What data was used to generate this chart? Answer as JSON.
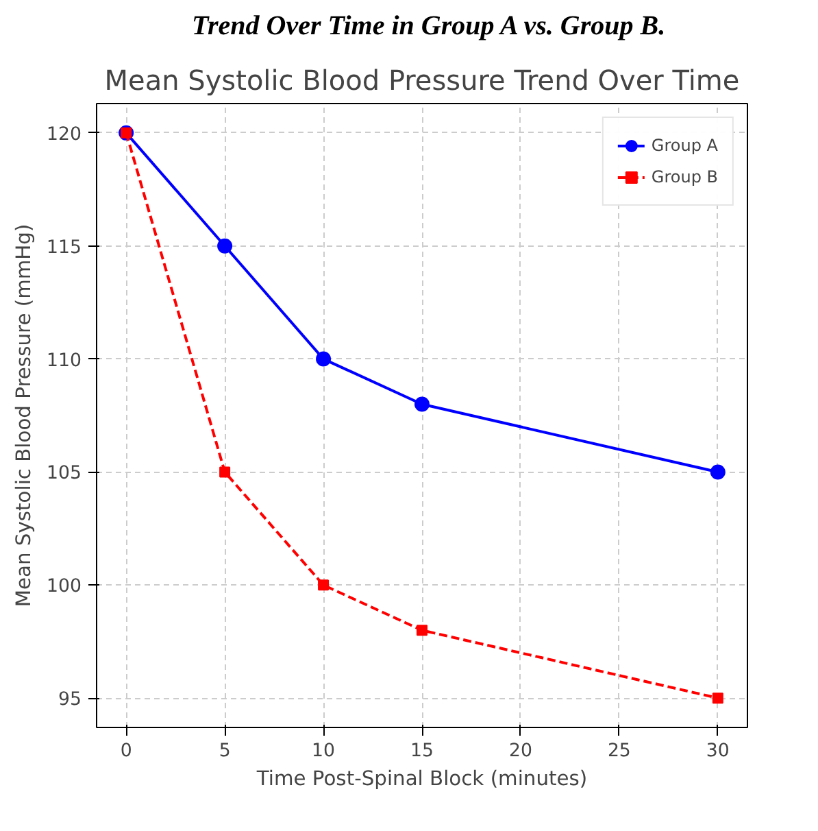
{
  "chart_data": {
    "type": "line",
    "title": "Mean Systolic Blood Pressure Trend Over Time",
    "xlabel": "Time Post-Spinal Block (minutes)",
    "ylabel": "Mean Systolic Blood Pressure (mmHg)",
    "annotations": [
      "Trend Over Time in Group A vs. Group B."
    ],
    "x": [
      0,
      5,
      10,
      15,
      30
    ],
    "series": [
      {
        "name": "Group A",
        "color": "#0000ff",
        "values": [
          120,
          115,
          110,
          108,
          105
        ],
        "marker": "circle",
        "line_style": "solid"
      },
      {
        "name": "Group B",
        "color": "#ff0000",
        "values": [
          120,
          105,
          100,
          98,
          95
        ],
        "marker": "square",
        "line_style": "dashed"
      }
    ],
    "xlim": [
      -1.5,
      31.5
    ],
    "ylim": [
      93.7,
      121.3
    ],
    "xticks": [
      0,
      5,
      10,
      15,
      20,
      25,
      30
    ],
    "yticks": [
      95,
      100,
      105,
      110,
      115,
      120
    ],
    "grid": true,
    "legend": "top right"
  }
}
